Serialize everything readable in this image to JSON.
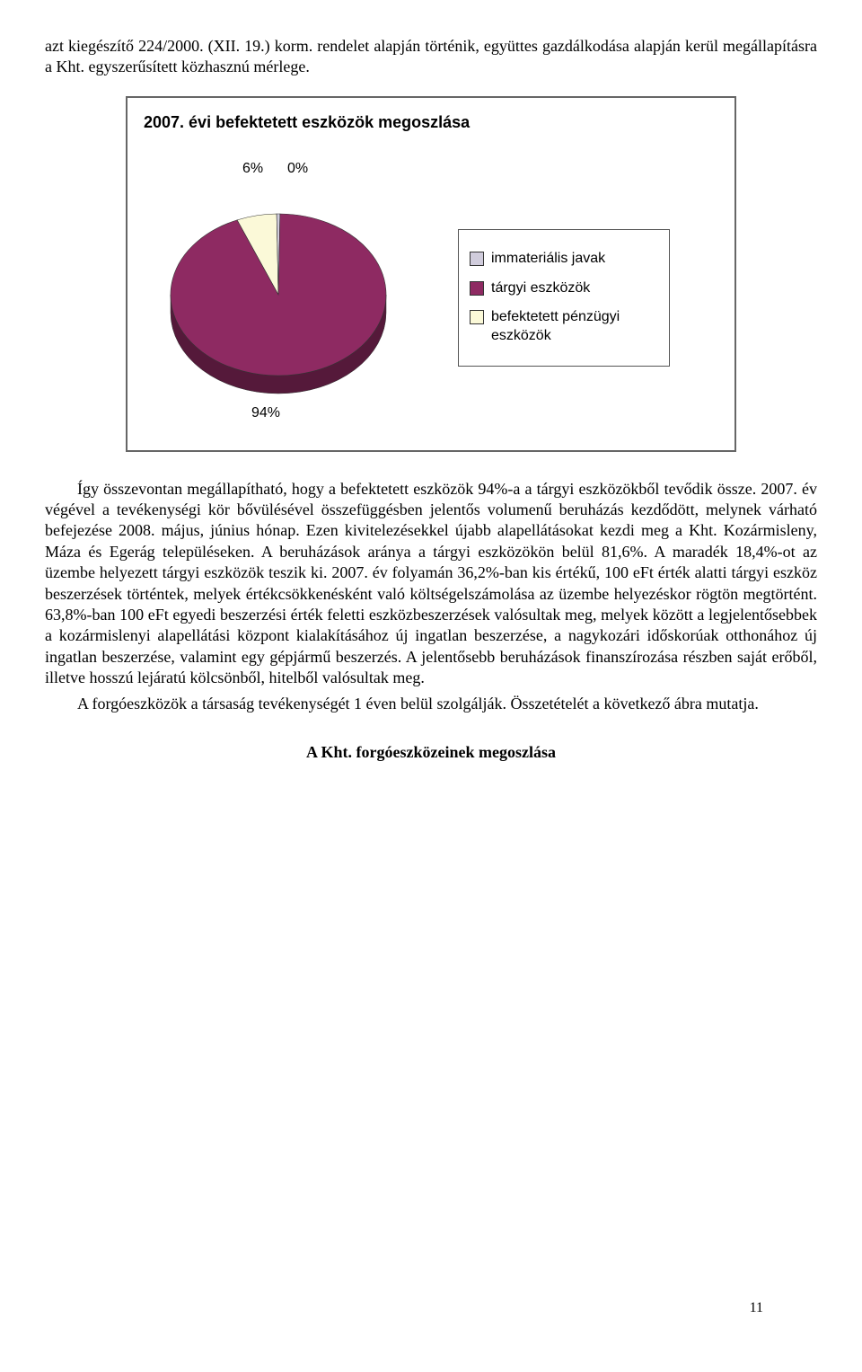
{
  "intro": "azt kiegészítő 224/2000. (XII. 19.) korm. rendelet alapján történik, együttes gazdálkodása alapján kerül megállapításra a Kht. egyszerűsített közhasznú mérlege.",
  "chart": {
    "type": "pie",
    "title": "2007. évi befektetett eszközök megoszlása",
    "labels": {
      "l0": "6%",
      "l1": "0%",
      "l2": "94%"
    },
    "slices": [
      {
        "value": 6,
        "color": "#fbf9d8"
      },
      {
        "value": 0.5,
        "color": "#d0ccdc"
      },
      {
        "value": 93.5,
        "color": "#8e2a62"
      }
    ],
    "background_color": "#ffffff",
    "border_color": "#666666",
    "size": 300,
    "legend": {
      "items": [
        {
          "label": "immateriális javak",
          "color": "#d0ccdc"
        },
        {
          "label": "tárgyi eszközök",
          "color": "#8e2a62"
        },
        {
          "label": "befektetett pénzügyi eszközök",
          "color": "#fbf9d8"
        }
      ]
    }
  },
  "para1a": "Így összevontan megállapítható, hogy a befektetett eszközök 94%-a a tárgyi eszközökből tevődik össze. 2007. év végével a tevékenységi kör bővülésével összefüggésben jelentős volumenű beruházás kezdődött, melynek várható befejezése 2008. május, június hónap. Ezen kivitelezésekkel újabb alapellátásokat kezdi meg a Kht. Kozármisleny, Máza és Egerág településeken. A beruházások aránya a tárgyi eszközökön belül 81,6%. A maradék 18,4%-ot az üzembe helyezett tárgyi eszközök teszik ki. 2007. év folyamán 36,2%-ban kis értékű, 100 eFt érték alatti tárgyi eszköz beszerzések történtek, melyek értékcsökkenésként való költségelszámolása az üzembe helyezéskor rögtön megtörtént. 63,8%-ban 100 eFt egyedi beszerzési érték feletti eszközbeszerzések valósultak meg, melyek között a legjelentősebbek a kozármislenyi alapellátási központ kialakításához új ingatlan beszerzése, a nagykozári időskorúak otthonához új ingatlan beszerzése, valamint egy gépjármű beszerzés.  A jelentősebb beruházások finanszírozása részben saját erőből, illetve hosszú lejáratú kölcsönből, hitelből valósultak meg.",
  "para2": "A forgóeszközök a társaság tevékenységét 1 éven belül szolgálják. Összetételét a következő ábra mutatja.",
  "subheading": "A Kht. forgóeszközeinek megoszlása",
  "page_number": "11"
}
